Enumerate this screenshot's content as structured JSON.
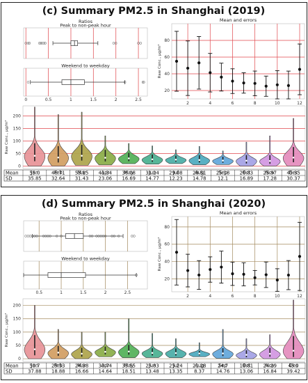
{
  "chart_data": [
    {
      "type": "composite",
      "title": "(c) Summary PM2.5 in Shanghai (2019)",
      "accent": "#e0474c",
      "box_titles": [
        "Peak to non-peak hour",
        "Weekend to weekday"
      ],
      "box_header": "Ratios",
      "box_xticks": [
        0.0,
        0.5,
        1.0,
        1.5,
        2.0,
        2.5
      ],
      "box_xlim": [
        -0.05,
        2.7
      ],
      "peak_box": {
        "q1": 1.0,
        "median": 1.08,
        "q3": 1.15,
        "wlo": 0.6,
        "whi": 1.6,
        "fliers": [
          0.0,
          0.05,
          0.08,
          0.3,
          0.33,
          0.36,
          0.4,
          0.43,
          1.95,
          2.0,
          2.5,
          2.55
        ]
      },
      "weekend_box": {
        "q1": 0.8,
        "median": 1.0,
        "q3": 1.3,
        "wlo": 0.1,
        "whi": 2.2,
        "fliers": [
          0.05,
          2.2,
          2.6,
          2.62
        ]
      },
      "mean_title": "Mean and errors",
      "mean_ylabel": "Raw Conc., μg/m³",
      "mean_xticks": [
        2,
        4,
        6,
        8,
        10,
        12
      ],
      "mean_yticks": [
        20,
        40,
        60,
        80
      ],
      "mean_ylim": [
        10,
        100
      ],
      "violin_ylabel": "Raw Conc., μg/m³",
      "violin_yticks": [
        0,
        50,
        100,
        150,
        200
      ],
      "violin_ylim": [
        -10,
        240
      ],
      "months": [
        "Jan",
        "Feb",
        "Mar",
        "Apr",
        "May",
        "Jun",
        "Jul",
        "Aug",
        "Sep",
        "Oct",
        "Nov",
        "Dec"
      ],
      "row_labels": [
        "Mean",
        "SD"
      ],
      "mean_display": [
        "55.0",
        "46.71",
        "53.15",
        "41.34",
        "36.08",
        "31.24",
        "29.08",
        "28.51",
        "25.18",
        "26.83",
        "25.97",
        "45.35"
      ],
      "sd_display": [
        "35.85",
        "32.64",
        "31.43",
        "23.06",
        "16.69",
        "14.77",
        "12.23",
        "14.78",
        "12.1",
        "16.89",
        "17.28",
        "30.37"
      ],
      "means": [
        55.0,
        46.71,
        53.15,
        41.34,
        36.08,
        31.24,
        29.08,
        28.51,
        25.18,
        26.83,
        25.97,
        45.35
      ],
      "sds": [
        35.85,
        32.64,
        31.43,
        23.06,
        16.69,
        14.77,
        12.23,
        14.78,
        12.1,
        16.89,
        17.28,
        30.37
      ],
      "maxima": [
        235,
        205,
        215,
        120,
        90,
        80,
        65,
        78,
        60,
        95,
        120,
        190
      ]
    },
    {
      "type": "composite",
      "title": "(d) Summary PM2.5 in Shanghai (2020)",
      "accent": "#a38a5e",
      "box_titles": [
        "Peak to non-peak hour",
        "Weekend to weekday"
      ],
      "box_header": "Ratios",
      "box_xticks": [
        0.5,
        1.0,
        1.5,
        2.0,
        2.5
      ],
      "box_xlim": [
        0.15,
        2.95
      ],
      "peak_box": {
        "q1": 1.1,
        "median": 1.3,
        "q3": 1.5,
        "wlo": 0.35,
        "whi": 2.4,
        "fliers": [
          0.2,
          0.25,
          0.3,
          0.35,
          0.4,
          0.45,
          0.6,
          0.65,
          0.7,
          0.75,
          0.9,
          1.0,
          1.65,
          1.7,
          1.8,
          1.85,
          1.9,
          1.95,
          2.0,
          2.15,
          2.2,
          2.3,
          2.6,
          2.65
        ]
      },
      "weekend_box": {
        "q1": 0.7,
        "median": 1.0,
        "q3": 1.55,
        "wlo": 0.15,
        "whi": 2.7,
        "fliers": [
          2.7
        ]
      },
      "mean_title": "Mean and errors",
      "mean_ylabel": "Raw Conc., μg/m³",
      "mean_xticks": [
        2,
        4,
        6,
        8,
        10,
        12
      ],
      "mean_yticks": [
        20,
        40,
        60,
        80
      ],
      "mean_ylim": [
        5,
        92
      ],
      "violin_ylabel": "Raw Conc., μg/m³",
      "violin_yticks": [
        0,
        50,
        100,
        150,
        200
      ],
      "violin_ylim": [
        -10,
        225
      ],
      "months": [
        "Jan",
        "Feb",
        "Mar",
        "Apr",
        "May",
        "Jun",
        "Jul",
        "Aug",
        "Sep",
        "Oct",
        "Nov",
        "Dec"
      ],
      "row_labels": [
        "Mean",
        "SD"
      ],
      "mean_display": [
        "50.7",
        "29.53",
        "24.38",
        "30.74",
        "33.55",
        "25.83",
        "25.24",
        "21.28",
        "24.7",
        "18.61",
        "24.29",
        "45.9"
      ],
      "sd_display": [
        "37.88",
        "18.88",
        "16.66",
        "14.64",
        "18.51",
        "13.48",
        "13.35",
        "8.37",
        "14.76",
        "13.06",
        "16.84",
        "39.42"
      ],
      "means": [
        50.7,
        29.53,
        24.38,
        30.74,
        33.55,
        25.83,
        25.24,
        21.28,
        24.7,
        18.61,
        24.29,
        45.9
      ],
      "sds": [
        37.88,
        18.88,
        16.66,
        14.64,
        18.51,
        13.48,
        13.35,
        8.37,
        14.76,
        13.06,
        16.84,
        39.42
      ],
      "maxima": [
        200,
        110,
        100,
        100,
        150,
        95,
        75,
        60,
        110,
        75,
        90,
        220
      ]
    }
  ],
  "violin_colors": [
    "#e8969a",
    "#d3a166",
    "#b0a751",
    "#8eaf4c",
    "#58b35b",
    "#4fb393",
    "#4fafa9",
    "#52acc0",
    "#67a9dc",
    "#a6a4e6",
    "#d399e2",
    "#e58fbe"
  ]
}
